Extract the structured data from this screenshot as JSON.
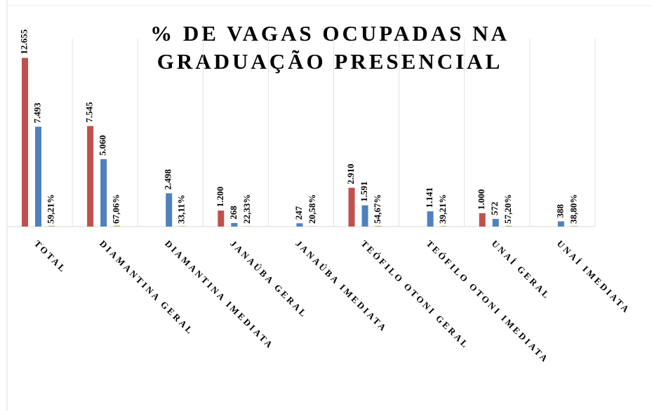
{
  "chart_data": {
    "type": "bar",
    "title": [
      "% DE VAGAS OCUPADAS NA",
      "GRADUAÇÃO PRESENCIAL"
    ],
    "categories": [
      "TOTAL",
      "DIAMANTINA GERAL",
      "DIAMANTINA IMEDIATA",
      "JANAÚBA GERAL",
      "JANAÚBA IMEDIATA",
      "TEÓFILO OTONI GERAL",
      "TEÓFILO OTONI IMEDIATA",
      "UNAÍ GERAL",
      "UNAÍ IMEDIATA"
    ],
    "series": [
      {
        "color": "#c0504d",
        "values": [
          12655,
          7545,
          null,
          1200,
          null,
          2910,
          null,
          1000,
          null
        ],
        "value_labels": [
          "12.655",
          "7.545",
          null,
          "1.200",
          null,
          "2.910",
          null,
          "1.000",
          null
        ]
      },
      {
        "color": "#4f81bd",
        "values": [
          7493,
          5060,
          2498,
          268,
          247,
          1591,
          1141,
          572,
          388
        ],
        "value_labels": [
          "7.493",
          "5.060",
          "2.498",
          "268",
          "247",
          "1.591",
          "1.141",
          "572",
          "388"
        ]
      },
      {
        "color": "#9bbb59",
        "values": [
          59.21,
          67.06,
          33.11,
          22.33,
          20.58,
          54.67,
          39.21,
          57.2,
          38.8
        ],
        "value_labels": [
          "59,21%",
          "67,06%",
          "33,11%",
          "22,33%",
          "20,58%",
          "54,67%",
          "39,21%",
          "57,20%",
          "38,80%"
        ]
      }
    ],
    "ylim": [
      0,
      13000
    ]
  }
}
